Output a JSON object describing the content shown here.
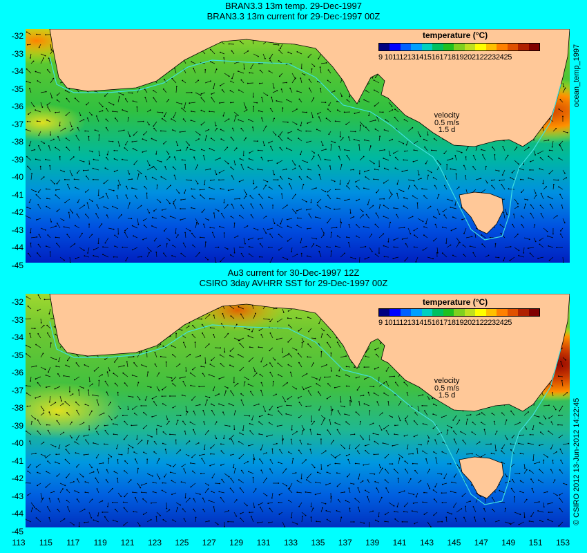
{
  "top_panel": {
    "title_line1": "BRAN3.3 13m temp. 29-Dec-1997",
    "title_line2": "BRAN3.3 13m current for 29-Dec-1997 00Z",
    "legend_title": "temperature (°C)",
    "legend_labels": "9 10111213141516171819202122232425",
    "velocity_label": "velocity",
    "velocity_value": "0.5 m/s",
    "velocity_scale": "1.5 d",
    "side_label": "ocean_temp_1997"
  },
  "bottom_panel": {
    "title_line1": "Au3 current for 30-Dec-1997 12Z",
    "title_line2": "CSIRO 3day AVHRR SST for 29-Dec-1997 00Z",
    "legend_title": "temperature (°C)",
    "legend_labels": "9 10111213141516171819202122232425",
    "velocity_label": "velocity",
    "velocity_value": "0.5 m/s",
    "velocity_scale": "1.5 d",
    "side_label": "© CSIRO 2012  13-Jun-2012 14:22:45"
  },
  "axes": {
    "lat_ticks": [
      "-32",
      "-33",
      "-34",
      "-35",
      "-36",
      "-37",
      "-38",
      "-39",
      "-40",
      "-41",
      "-42",
      "-43",
      "-44",
      "-45"
    ],
    "lon_ticks": [
      "113",
      "115",
      "117",
      "119",
      "121",
      "123",
      "125",
      "127",
      "129",
      "131",
      "133",
      "135",
      "137",
      "139",
      "141",
      "143",
      "145",
      "147",
      "149",
      "151",
      "153"
    ]
  },
  "colors": {
    "background": "#00ffff",
    "land": "#ffc898",
    "colorbar": [
      "#000080",
      "#0000ff",
      "#0060ff",
      "#00a0ff",
      "#00d0c0",
      "#00c060",
      "#20c020",
      "#80d020",
      "#c0e020",
      "#ffff00",
      "#ffc000",
      "#ff8000",
      "#e05000",
      "#b02000",
      "#800000"
    ]
  }
}
